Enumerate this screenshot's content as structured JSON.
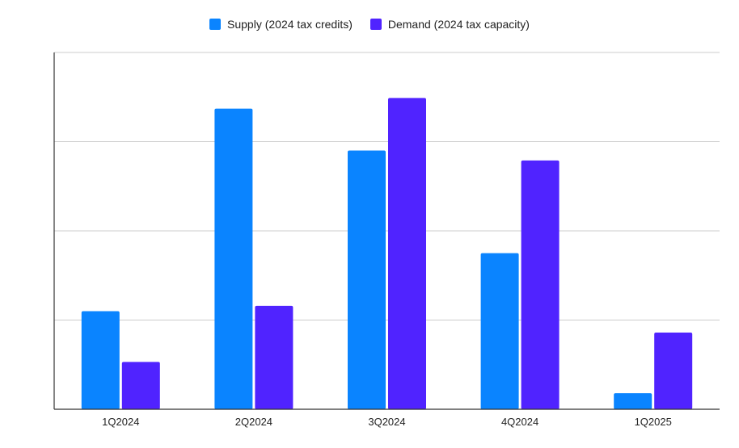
{
  "chart_data": {
    "type": "bar",
    "title": "",
    "xlabel": "",
    "ylabel": "",
    "categories": [
      "1Q2024",
      "2Q2024",
      "3Q2024",
      "4Q2024",
      "1Q2025"
    ],
    "series": [
      {
        "name": "Supply (2024 tax credits)",
        "color": "#0a84ff",
        "values": [
          1.1,
          3.37,
          2.9,
          1.75,
          0.18
        ]
      },
      {
        "name": "Demand (2024 tax capacity)",
        "color": "#5023ff",
        "values": [
          0.53,
          1.16,
          3.49,
          2.79,
          0.86
        ]
      }
    ],
    "ylim": [
      0,
      4
    ],
    "y_tick_labels_shown": false,
    "grid": true,
    "legend": "top-center"
  }
}
